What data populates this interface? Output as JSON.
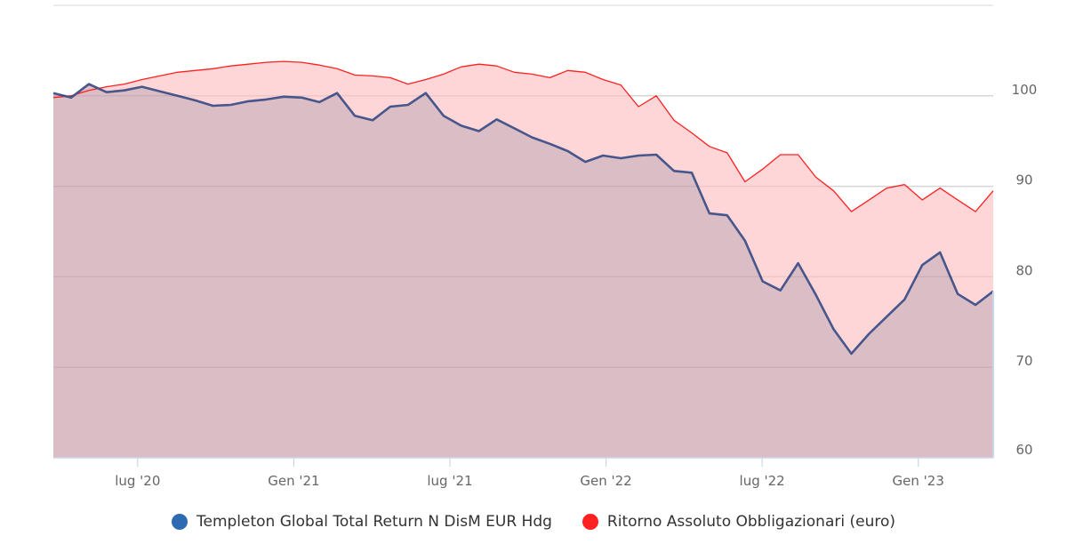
{
  "chart_data": {
    "type": "area",
    "title": "",
    "xlabel": "",
    "ylabel": "",
    "x_range": [
      2020.23,
      2023.24
    ],
    "ylim": [
      60,
      110
    ],
    "y_ticks": [
      60,
      70,
      80,
      90,
      100
    ],
    "y_tick_labels": [
      "60",
      "70",
      "80",
      "90",
      "100"
    ],
    "x_ticks": [
      {
        "pos": 2020.5,
        "label": "lug '20"
      },
      {
        "pos": 2021.0,
        "label": "Gen '21"
      },
      {
        "pos": 2021.5,
        "label": "lug '21"
      },
      {
        "pos": 2022.0,
        "label": "Gen '22"
      },
      {
        "pos": 2022.5,
        "label": "lug '22"
      },
      {
        "pos": 2023.0,
        "label": "Gen '23"
      }
    ],
    "grid": true,
    "legend_position": "bottom-center",
    "series": [
      {
        "name": "Ritorno Assoluto Obbligazionari (euro)",
        "color": "#ff2020",
        "values": [
          99.8,
          100,
          100.6,
          101,
          101.3,
          101.8,
          102.2,
          102.6,
          102.8,
          103,
          103.3,
          103.5,
          103.7,
          103.8,
          103.7,
          103.4,
          103,
          102.3,
          102.2,
          102,
          101.3,
          101.8,
          102.4,
          103.2,
          103.5,
          103.3,
          102.6,
          102.4,
          102,
          102.8,
          102.6,
          101.8,
          101.2,
          98.8,
          100,
          97.3,
          95.9,
          94.4,
          93.7,
          90.5,
          91.9,
          93.5,
          93.5,
          91,
          89.5,
          87.2,
          88.5,
          89.8,
          90.2,
          88.5,
          89.8,
          88.5,
          87.2,
          89.5
        ]
      },
      {
        "name": "Templeton Global Total Return N DisM EUR Hdg",
        "color": "#2e6ab2",
        "values": [
          100.3,
          99.8,
          101.3,
          100.4,
          100.6,
          101,
          100.5,
          100,
          99.5,
          98.9,
          99,
          99.4,
          99.6,
          99.9,
          99.8,
          99.3,
          100.3,
          97.8,
          97.3,
          98.8,
          99,
          100.3,
          97.8,
          96.7,
          96.1,
          97.4,
          96.4,
          95.4,
          94.7,
          93.9,
          92.7,
          93.4,
          93.1,
          93.4,
          93.5,
          91.7,
          91.5,
          87,
          86.8,
          84,
          79.5,
          78.5,
          81.5,
          78,
          74.2,
          71.5,
          73.7,
          75.6,
          77.5,
          81.3,
          82.7,
          78.1,
          76.9,
          78.4
        ]
      }
    ]
  },
  "legend": {
    "items": [
      {
        "label": "Templeton Global Total Return N DisM EUR Hdg",
        "color": "#2e6ab2"
      },
      {
        "label": "Ritorno Assoluto Obbligazionari (euro)",
        "color": "#ff2020"
      }
    ]
  }
}
